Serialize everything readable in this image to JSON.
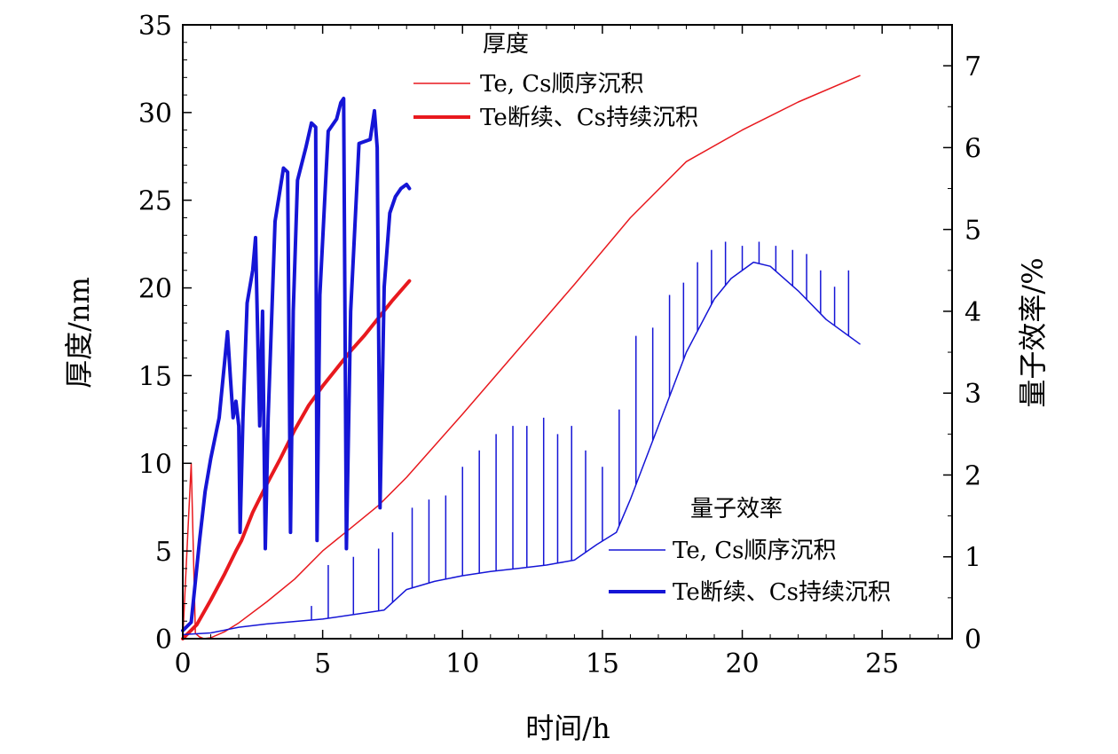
{
  "chart_data": {
    "type": "line",
    "xlabel": "时间/h",
    "ylabel_left": "厚度/nm",
    "ylabel_right": "量子效率/%",
    "xlim": [
      0,
      27.5
    ],
    "ylim_left": [
      0,
      35
    ],
    "ylim_right": [
      0,
      7.5
    ],
    "x_ticks": [
      "0",
      "5",
      "10",
      "15",
      "20",
      "25"
    ],
    "y_left_ticks": [
      "0",
      "5",
      "10",
      "15",
      "20",
      "25",
      "30",
      "35"
    ],
    "y_right_ticks": [
      "0",
      "1",
      "2",
      "3",
      "4",
      "5",
      "6",
      "7"
    ],
    "colors": {
      "red": "#e8191e",
      "blue": "#1515d6"
    },
    "legend_thickness": {
      "title": "厚度",
      "items": [
        "Te, Cs顺序沉积",
        "Te断续、Cs持续沉积"
      ],
      "placement": "top-center"
    },
    "legend_qe": {
      "title": "量子效率",
      "items": [
        "Te, Cs顺序沉积",
        "Te断续、Cs持续沉积"
      ],
      "placement": "bottom-right"
    },
    "series": [
      {
        "name": "Te, Cs顺序沉积",
        "quantity": "厚度",
        "axis": "left",
        "color": "#e8191e",
        "style": "thin",
        "x": [
          0,
          0.15,
          0.3,
          0.45,
          0.6,
          0.75,
          1.0,
          1.5,
          2.0,
          3.0,
          4.0,
          5.0,
          6.0,
          7.0,
          8.0,
          10,
          12,
          14,
          16,
          18,
          20,
          22,
          24.2
        ],
        "y": [
          0,
          5,
          10,
          0.3,
          0.1,
          0,
          0.05,
          0.4,
          0.9,
          2.1,
          3.4,
          5.0,
          6.3,
          7.6,
          9.2,
          12.8,
          16.5,
          20.2,
          24,
          27.2,
          29.0,
          30.6,
          32.1
        ]
      },
      {
        "name": "Te断续、Cs持续沉积",
        "quantity": "厚度",
        "axis": "left",
        "color": "#e8191e",
        "style": "thick",
        "x": [
          0,
          0.5,
          1.0,
          1.5,
          1.9,
          2.1,
          2.5,
          3.0,
          3.5,
          4.0,
          4.5,
          5.0,
          5.5,
          6.0,
          6.5,
          7.0,
          7.5,
          8.1
        ],
        "y": [
          0,
          0.8,
          2.2,
          3.7,
          5.0,
          5.6,
          7.2,
          8.8,
          10.3,
          11.9,
          13.3,
          14.4,
          15.4,
          16.4,
          17.3,
          18.3,
          19.3,
          20.4
        ]
      },
      {
        "name": "Te, Cs顺序沉积",
        "quantity": "量子效率",
        "axis": "right",
        "color": "#1515d6",
        "style": "thin",
        "x": [
          0,
          1,
          2,
          3,
          4,
          5,
          7.2,
          8,
          9,
          10,
          11,
          12,
          13,
          14,
          14.8,
          15.5,
          16,
          17,
          18,
          19,
          19.6,
          20.4,
          21,
          22,
          23,
          24,
          24.2
        ],
        "y": [
          0.05,
          0.07,
          0.14,
          0.18,
          0.21,
          0.24,
          0.35,
          0.6,
          0.7,
          0.77,
          0.82,
          0.86,
          0.9,
          0.96,
          1.15,
          1.3,
          1.7,
          2.6,
          3.5,
          4.15,
          4.4,
          4.6,
          4.55,
          4.25,
          3.9,
          3.65,
          3.6
        ],
        "spikes": [
          {
            "x": 4.6,
            "y": 0.4
          },
          {
            "x": 5.2,
            "y": 0.9
          },
          {
            "x": 6.1,
            "y": 1.0
          },
          {
            "x": 7.0,
            "y": 1.1
          },
          {
            "x": 7.5,
            "y": 1.3
          },
          {
            "x": 8.2,
            "y": 1.6
          },
          {
            "x": 8.8,
            "y": 1.7
          },
          {
            "x": 9.4,
            "y": 1.75
          },
          {
            "x": 10.0,
            "y": 2.1
          },
          {
            "x": 10.6,
            "y": 2.3
          },
          {
            "x": 11.2,
            "y": 2.5
          },
          {
            "x": 11.8,
            "y": 2.6
          },
          {
            "x": 12.3,
            "y": 2.6
          },
          {
            "x": 12.9,
            "y": 2.7
          },
          {
            "x": 13.4,
            "y": 2.5
          },
          {
            "x": 13.9,
            "y": 2.6
          },
          {
            "x": 14.4,
            "y": 2.3
          },
          {
            "x": 15.0,
            "y": 2.1
          },
          {
            "x": 15.6,
            "y": 2.8
          },
          {
            "x": 16.2,
            "y": 3.7
          },
          {
            "x": 16.8,
            "y": 3.8
          },
          {
            "x": 17.4,
            "y": 4.2
          },
          {
            "x": 17.9,
            "y": 4.35
          },
          {
            "x": 18.4,
            "y": 4.6
          },
          {
            "x": 18.9,
            "y": 4.75
          },
          {
            "x": 19.4,
            "y": 4.85
          },
          {
            "x": 20.0,
            "y": 4.8
          },
          {
            "x": 20.6,
            "y": 4.85
          },
          {
            "x": 21.2,
            "y": 4.8
          },
          {
            "x": 21.8,
            "y": 4.75
          },
          {
            "x": 22.3,
            "y": 4.7
          },
          {
            "x": 22.8,
            "y": 4.5
          },
          {
            "x": 23.3,
            "y": 4.3
          },
          {
            "x": 23.8,
            "y": 4.5
          }
        ]
      },
      {
        "name": "Te断续、Cs持续沉积",
        "quantity": "量子效率",
        "axis": "right",
        "color": "#1515d6",
        "style": "thick",
        "x": [
          0,
          0.3,
          0.6,
          0.8,
          1.0,
          1.3,
          1.5,
          1.6,
          1.7,
          1.8,
          1.9,
          2.0,
          2.05,
          2.15,
          2.3,
          2.5,
          2.6,
          2.75,
          2.85,
          2.95,
          3.05,
          3.3,
          3.6,
          3.75,
          3.85,
          3.95,
          4.1,
          4.4,
          4.6,
          4.75,
          4.8,
          4.9,
          5.2,
          5.5,
          5.65,
          5.75,
          5.85,
          6.0,
          6.3,
          6.7,
          6.85,
          6.95,
          7.05,
          7.2,
          7.4,
          7.6,
          7.8,
          8.0,
          8.1
        ],
        "y": [
          0.1,
          0.2,
          1.2,
          1.8,
          2.2,
          2.7,
          3.4,
          3.75,
          3.2,
          2.7,
          2.9,
          2.6,
          1.3,
          2.7,
          4.1,
          4.5,
          4.9,
          2.6,
          4.0,
          1.1,
          2.7,
          5.1,
          5.75,
          5.7,
          1.3,
          4.0,
          5.6,
          6.0,
          6.3,
          6.25,
          1.2,
          4.2,
          6.2,
          6.35,
          6.55,
          6.6,
          1.1,
          4.0,
          6.05,
          6.1,
          6.45,
          6.0,
          1.6,
          4.3,
          5.2,
          5.4,
          5.5,
          5.55,
          5.5
        ]
      }
    ]
  }
}
